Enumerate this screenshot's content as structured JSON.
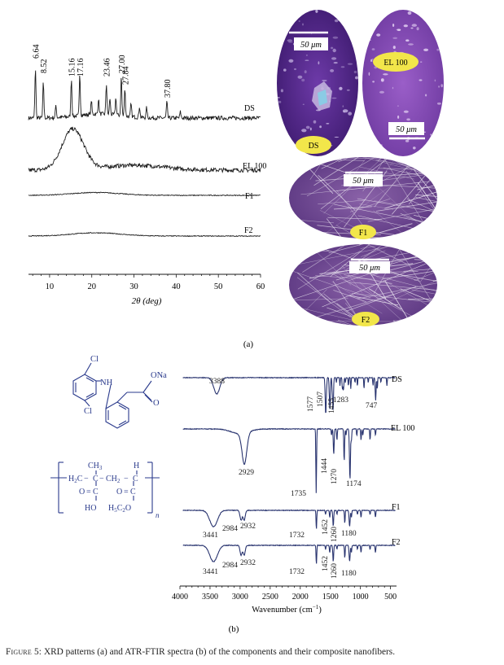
{
  "panel_a": {
    "label": "(a)",
    "xrd": {
      "type": "line",
      "xlabel": "2θ (deg)",
      "xlim": [
        5,
        60
      ],
      "xticks": [
        10,
        20,
        30,
        40,
        50,
        60
      ],
      "yaxis": "none (stacked, offset patterns)",
      "peak_labels": [
        "6.64",
        "8.52",
        "15.16",
        "17.16",
        "23.46",
        "27.00",
        "27.84",
        "37.80"
      ],
      "peak_positions": [
        6.64,
        8.52,
        15.16,
        17.16,
        23.46,
        27.0,
        27.84,
        37.8
      ],
      "series": [
        {
          "name": "DS",
          "profile": "crystalline",
          "sharp_peaks": [
            [
              6.64,
              1.0
            ],
            [
              8.52,
              0.7
            ],
            [
              11.5,
              0.25
            ],
            [
              15.16,
              0.75
            ],
            [
              17.16,
              0.85
            ],
            [
              19.9,
              0.28
            ],
            [
              21.6,
              0.3
            ],
            [
              23.46,
              0.6
            ],
            [
              24.3,
              0.32
            ],
            [
              25.7,
              0.35
            ],
            [
              27.0,
              0.78
            ],
            [
              27.84,
              0.55
            ],
            [
              29.3,
              0.25
            ],
            [
              31.3,
              0.22
            ],
            [
              33.0,
              0.2
            ],
            [
              37.8,
              0.32
            ],
            [
              41.0,
              0.12
            ]
          ]
        },
        {
          "name": "EL 100",
          "profile": "amorphous",
          "halo_center": 15.5,
          "halo_width": 3.6,
          "halo_height": 1.0
        },
        {
          "name": "F1",
          "profile": "amorphous",
          "halo_center": 21,
          "halo_width": 8,
          "halo_height": 0.35
        },
        {
          "name": "F2",
          "profile": "amorphous",
          "halo_center": 21,
          "halo_width": 8,
          "halo_height": 0.4
        }
      ]
    },
    "micrographs": [
      {
        "sample": "DS",
        "scale_bar": "50 μm"
      },
      {
        "sample": "EL 100",
        "scale_bar": "50 μm"
      },
      {
        "sample": "F1",
        "scale_bar": "50 μm"
      },
      {
        "sample": "F2",
        "scale_bar": "50 μm"
      }
    ]
  },
  "panel_b": {
    "label": "(b)",
    "structures": {
      "ds_labels": [
        "Cl",
        "NH",
        "ONa",
        "O",
        "Cl"
      ],
      "el100": {
        "ch3": "CH",
        "ch3_sub": "3",
        "h": "H",
        "h2c": "H",
        "h2c_sub": "2",
        "h2c_c": "C",
        "dash_c": "C",
        "ch2_c": "CH",
        "ch2_sub": "2",
        "c_right": "C",
        "o_left": "O",
        "c_left_2": "C",
        "o_right": "O",
        "c_right_2": "C",
        "ho": "HO",
        "h3c2o": "H",
        "h3c2o_sub1": "5",
        "h3c2o_c": "C",
        "h3c2o_sub2": "2",
        "h3c2o_end": "O",
        "n": "n"
      }
    },
    "ftir": {
      "type": "line",
      "xlabel": "Wavenumber (cm",
      "xlabel_sup": "−1",
      "xlabel_end": ")",
      "xlim": [
        4000,
        400
      ],
      "xticks": [
        4000,
        3500,
        3000,
        2500,
        2000,
        1500,
        1000,
        500
      ],
      "series": [
        {
          "name": "DS",
          "bands": [
            {
              "x": 3388,
              "label": "3388"
            },
            {
              "x": 1577,
              "label": "1577"
            },
            {
              "x": 1507,
              "label": "1507"
            },
            {
              "x": 1455,
              "label": "1455"
            },
            {
              "x": 1283,
              "label": "1283"
            },
            {
              "x": 747,
              "label": "747"
            }
          ]
        },
        {
          "name": "EL 100",
          "bands": [
            {
              "x": 2929,
              "label": "2929"
            },
            {
              "x": 1735,
              "label": "1735"
            },
            {
              "x": 1444,
              "label": "1444"
            },
            {
              "x": 1270,
              "label": "1270"
            },
            {
              "x": 1174,
              "label": "1174"
            }
          ]
        },
        {
          "name": "F1",
          "bands": [
            {
              "x": 3441,
              "label": "3441"
            },
            {
              "x": 2984,
              "label": "2984"
            },
            {
              "x": 2932,
              "label": "2932"
            },
            {
              "x": 1732,
              "label": "1732"
            },
            {
              "x": 1452,
              "label": "1452"
            },
            {
              "x": 1260,
              "label": "1260"
            },
            {
              "x": 1180,
              "label": "1180"
            }
          ]
        },
        {
          "name": "F2",
          "bands": [
            {
              "x": 3441,
              "label": "3441"
            },
            {
              "x": 2984,
              "label": "2984"
            },
            {
              "x": 2932,
              "label": "2932"
            },
            {
              "x": 1732,
              "label": "1732"
            },
            {
              "x": 1452,
              "label": "1452"
            },
            {
              "x": 1260,
              "label": "1260"
            },
            {
              "x": 1180,
              "label": "1180"
            }
          ]
        }
      ]
    }
  },
  "caption": {
    "prefix": "Figure 5:",
    "text": " XRD patterns (a) and ATR-FTIR spectra (b) of the components and their composite nanofibers."
  },
  "colors": {
    "line": "#1c1c1c",
    "ftir_line": "#2a3570",
    "blue": "#2a3a8c",
    "purple": "#5b2c8e",
    "bubble": "#f2e64a"
  }
}
